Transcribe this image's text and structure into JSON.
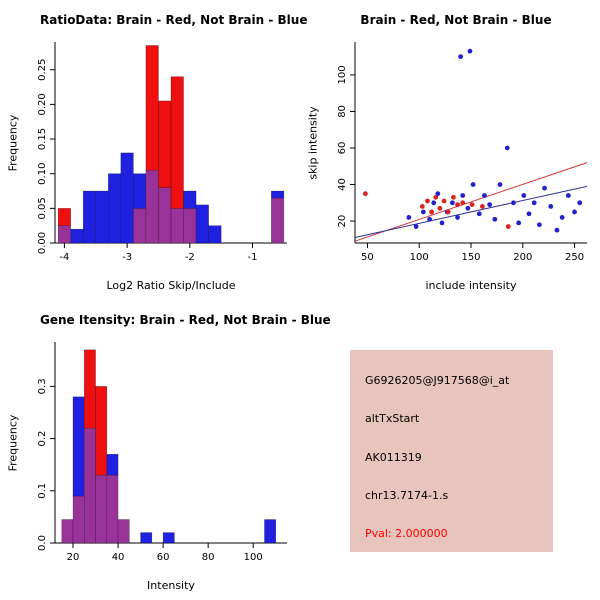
{
  "colors": {
    "red": "#EE1010",
    "blue": "#2020E0",
    "overlap": "#993399",
    "scatter_red": "#DD2222",
    "scatter_blue": "#2222CC",
    "line_red": "#CC3333",
    "line_blue": "#333399",
    "axis": "#000000",
    "info_bg": "#E8C5BC",
    "pval_color": "#FF0000"
  },
  "chart_data": [
    {
      "type": "bar",
      "variant": "overlaid-histogram",
      "title": "RatioData: Brain - Red, Not Brain - Blue",
      "xlabel": "Log2 Ratio Skip/Include",
      "ylabel": "Frequency",
      "xlim": [
        -4.15,
        -0.45
      ],
      "ylim": [
        0,
        0.29
      ],
      "xticks": [
        -4,
        -3,
        -2,
        -1
      ],
      "xtick_labels": [
        "-4",
        "-3",
        "-2",
        "-1"
      ],
      "yticks": [
        0,
        0.05,
        0.1,
        0.15,
        0.2,
        0.25
      ],
      "ytick_labels": [
        "0.00",
        "0.05",
        "0.10",
        "0.15",
        "0.20",
        "0.25"
      ],
      "bin_width": 0.2,
      "bins": [
        {
          "x": -4.1,
          "blue": 0.025,
          "red": 0.05
        },
        {
          "x": -3.9,
          "blue": 0.02,
          "red": 0
        },
        {
          "x": -3.7,
          "blue": 0.075,
          "red": 0
        },
        {
          "x": -3.5,
          "blue": 0.075,
          "red": 0
        },
        {
          "x": -3.3,
          "blue": 0.1,
          "red": 0
        },
        {
          "x": -3.1,
          "blue": 0.13,
          "red": 0
        },
        {
          "x": -2.9,
          "blue": 0.1,
          "red": 0.05
        },
        {
          "x": -2.7,
          "blue": 0.105,
          "red": 0.285
        },
        {
          "x": -2.5,
          "blue": 0.08,
          "red": 0.205
        },
        {
          "x": -2.3,
          "blue": 0.05,
          "red": 0.24
        },
        {
          "x": -2.1,
          "blue": 0.075,
          "red": 0.05
        },
        {
          "x": -1.9,
          "blue": 0.055,
          "red": 0
        },
        {
          "x": -1.7,
          "blue": 0.025,
          "red": 0
        },
        {
          "x": -0.7,
          "blue": 0.075,
          "red": 0.065
        }
      ]
    },
    {
      "type": "scatter",
      "title": "Brain - Red, Not Brain - Blue",
      "xlabel": "include intensity",
      "ylabel": "skip intensity",
      "xlim": [
        38,
        262
      ],
      "ylim": [
        8,
        118
      ],
      "xticks": [
        50,
        100,
        150,
        200,
        250
      ],
      "xtick_labels": [
        "50",
        "100",
        "150",
        "200",
        "250"
      ],
      "yticks": [
        20,
        40,
        60,
        80,
        100
      ],
      "ytick_labels": [
        "20",
        "40",
        "60",
        "80",
        "100"
      ],
      "lines": [
        {
          "x1": 38,
          "y1": 9,
          "x2": 262,
          "y2": 52,
          "color": "red"
        },
        {
          "x1": 38,
          "y1": 11,
          "x2": 262,
          "y2": 39,
          "color": "blue"
        }
      ],
      "points": [
        {
          "x": 140,
          "y": 110,
          "c": "blue"
        },
        {
          "x": 149,
          "y": 113,
          "c": "blue"
        },
        {
          "x": 185,
          "y": 60,
          "c": "blue"
        },
        {
          "x": 90,
          "y": 22,
          "c": "blue"
        },
        {
          "x": 97,
          "y": 17,
          "c": "blue"
        },
        {
          "x": 104,
          "y": 25,
          "c": "blue"
        },
        {
          "x": 110,
          "y": 21,
          "c": "blue"
        },
        {
          "x": 114,
          "y": 30,
          "c": "blue"
        },
        {
          "x": 118,
          "y": 35,
          "c": "blue"
        },
        {
          "x": 122,
          "y": 19,
          "c": "blue"
        },
        {
          "x": 127,
          "y": 25,
          "c": "blue"
        },
        {
          "x": 132,
          "y": 30,
          "c": "blue"
        },
        {
          "x": 137,
          "y": 22,
          "c": "blue"
        },
        {
          "x": 142,
          "y": 34,
          "c": "blue"
        },
        {
          "x": 147,
          "y": 27,
          "c": "blue"
        },
        {
          "x": 152,
          "y": 40,
          "c": "blue"
        },
        {
          "x": 158,
          "y": 24,
          "c": "blue"
        },
        {
          "x": 163,
          "y": 34,
          "c": "blue"
        },
        {
          "x": 168,
          "y": 29,
          "c": "blue"
        },
        {
          "x": 173,
          "y": 21,
          "c": "blue"
        },
        {
          "x": 178,
          "y": 40,
          "c": "blue"
        },
        {
          "x": 191,
          "y": 30,
          "c": "blue"
        },
        {
          "x": 196,
          "y": 19,
          "c": "blue"
        },
        {
          "x": 201,
          "y": 34,
          "c": "blue"
        },
        {
          "x": 206,
          "y": 24,
          "c": "blue"
        },
        {
          "x": 211,
          "y": 30,
          "c": "blue"
        },
        {
          "x": 216,
          "y": 18,
          "c": "blue"
        },
        {
          "x": 221,
          "y": 38,
          "c": "blue"
        },
        {
          "x": 227,
          "y": 28,
          "c": "blue"
        },
        {
          "x": 233,
          "y": 15,
          "c": "blue"
        },
        {
          "x": 238,
          "y": 22,
          "c": "blue"
        },
        {
          "x": 244,
          "y": 34,
          "c": "blue"
        },
        {
          "x": 250,
          "y": 25,
          "c": "blue"
        },
        {
          "x": 255,
          "y": 30,
          "c": "blue"
        },
        {
          "x": 48,
          "y": 35,
          "c": "red"
        },
        {
          "x": 103,
          "y": 28,
          "c": "red"
        },
        {
          "x": 108,
          "y": 31,
          "c": "red"
        },
        {
          "x": 112,
          "y": 25,
          "c": "red"
        },
        {
          "x": 116,
          "y": 33,
          "c": "red"
        },
        {
          "x": 120,
          "y": 27,
          "c": "red"
        },
        {
          "x": 124,
          "y": 31,
          "c": "red"
        },
        {
          "x": 128,
          "y": 25,
          "c": "red"
        },
        {
          "x": 133,
          "y": 33,
          "c": "red"
        },
        {
          "x": 137,
          "y": 29,
          "c": "red"
        },
        {
          "x": 142,
          "y": 30,
          "c": "red"
        },
        {
          "x": 151,
          "y": 29,
          "c": "red"
        },
        {
          "x": 161,
          "y": 28,
          "c": "red"
        },
        {
          "x": 186,
          "y": 17,
          "c": "red"
        }
      ]
    },
    {
      "type": "bar",
      "variant": "overlaid-histogram",
      "title": "Gene Itensity: Brain - Red, Not Brain - Blue",
      "xlabel": "Intensity",
      "ylabel": "Frequency",
      "xlim": [
        12,
        115
      ],
      "ylim": [
        0,
        0.385
      ],
      "xticks": [
        20,
        40,
        60,
        80,
        100
      ],
      "xtick_labels": [
        "20",
        "40",
        "60",
        "80",
        "100"
      ],
      "yticks": [
        0,
        0.1,
        0.2,
        0.3
      ],
      "ytick_labels": [
        "0.0",
        "0.1",
        "0.2",
        "0.3"
      ],
      "bin_width": 5,
      "bins": [
        {
          "x": 15,
          "blue": 0.045,
          "red": 0.045
        },
        {
          "x": 20,
          "blue": 0.28,
          "red": 0.09
        },
        {
          "x": 25,
          "blue": 0.22,
          "red": 0.37
        },
        {
          "x": 30,
          "blue": 0.13,
          "red": 0.3
        },
        {
          "x": 35,
          "blue": 0.17,
          "red": 0.13
        },
        {
          "x": 40,
          "blue": 0.045,
          "red": 0.045
        },
        {
          "x": 50,
          "blue": 0.02,
          "red": 0
        },
        {
          "x": 60,
          "blue": 0.02,
          "red": 0
        },
        {
          "x": 105,
          "blue": 0.045,
          "red": 0
        }
      ]
    }
  ],
  "info_panel": {
    "lines": [
      {
        "text": "G6926205@J917568@i_at"
      },
      {
        "text": "altTxStart"
      },
      {
        "text": "AK011319"
      },
      {
        "text": "chr13.7174-1.s"
      },
      {
        "text": "Pval: 2.000000",
        "highlight": true
      }
    ]
  }
}
